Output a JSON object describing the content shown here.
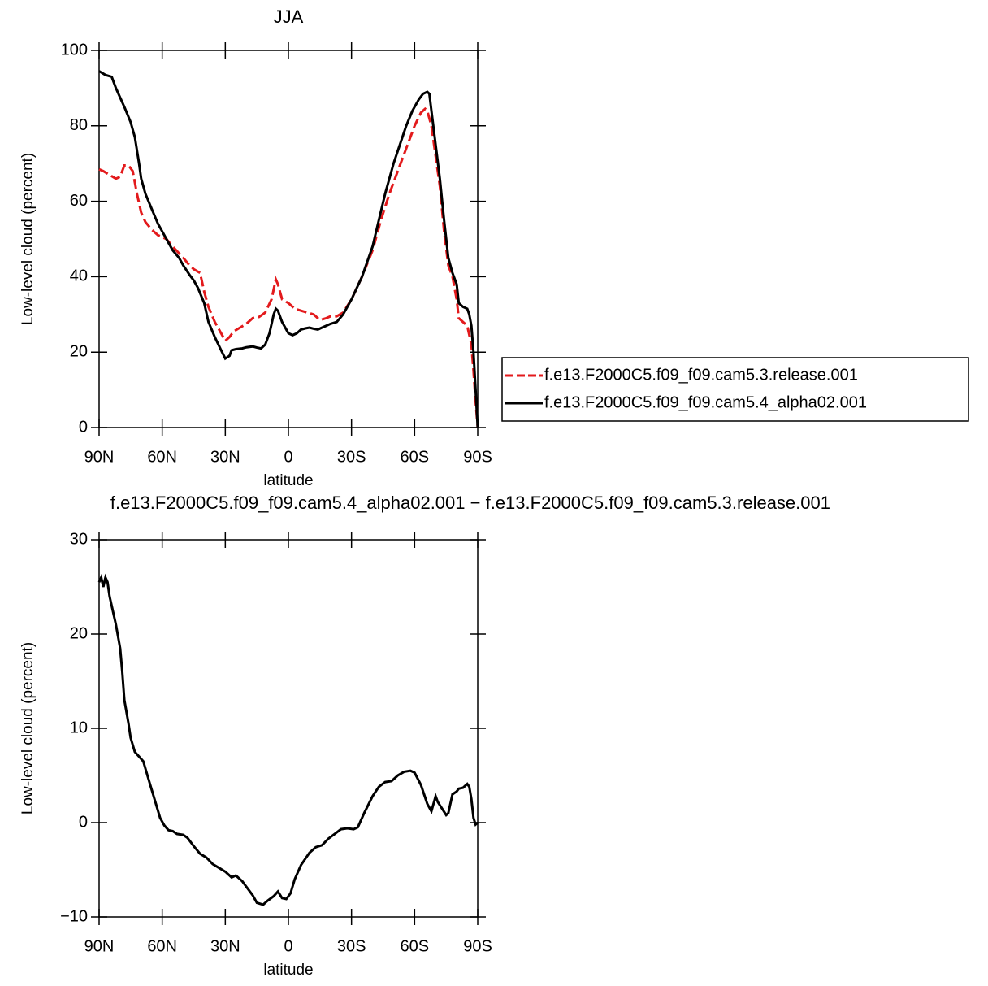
{
  "chart_data": [
    {
      "type": "line",
      "title": "JJA",
      "xlabel": "latitude",
      "ylabel": "Low-level cloud (percent)",
      "xlim": [
        90,
        -90
      ],
      "xticks": [
        {
          "value": 90,
          "label": "90N"
        },
        {
          "value": 60,
          "label": "60N"
        },
        {
          "value": 30,
          "label": "30N"
        },
        0,
        {
          "value": -30,
          "label": "30S"
        },
        {
          "value": -60,
          "label": "60S"
        },
        {
          "value": -90,
          "label": "90S"
        }
      ],
      "ylim": [
        0,
        100
      ],
      "yticks": [
        0,
        20,
        40,
        60,
        80,
        100
      ],
      "legend": "right",
      "series": [
        {
          "name": "f.e13.F2000C5.f09_f09.cam5.3.release.001",
          "color": "#e31a1c",
          "dash": true,
          "x": [
            90,
            88,
            85,
            82,
            80,
            78,
            76,
            74,
            72,
            70,
            68,
            65,
            62,
            58,
            55,
            50,
            47,
            45,
            42,
            40,
            38,
            35,
            32,
            30,
            28,
            26,
            23,
            20,
            17,
            14,
            11,
            8,
            6,
            5,
            3,
            0,
            -3,
            -6,
            -9,
            -12,
            -15,
            -18,
            -20,
            -23,
            -26,
            -30,
            -35,
            -40,
            -44,
            -48,
            -52,
            -56,
            -60,
            -63,
            -65,
            -66,
            -68,
            -70,
            -72,
            -74,
            -76,
            -78,
            -80,
            -81,
            -83,
            -85,
            -87,
            -88,
            -89,
            -90
          ],
          "values": [
            68.5,
            68,
            67,
            66,
            66.5,
            69.5,
            69.5,
            68,
            62,
            57,
            54.5,
            52.5,
            51,
            50,
            48,
            45,
            43,
            42,
            41,
            36,
            32,
            28,
            25,
            23,
            24,
            25.5,
            26.5,
            27.5,
            29,
            29.3,
            30.5,
            34,
            39.3,
            38,
            34,
            33,
            31.5,
            31,
            30.5,
            30,
            28.5,
            29,
            29.5,
            29.5,
            30.5,
            34,
            40,
            47,
            55,
            62,
            68,
            74,
            80,
            83.5,
            84.5,
            84,
            80,
            72,
            64,
            52,
            43,
            40,
            34,
            29,
            28,
            27,
            22,
            15,
            7,
            0
          ]
        },
        {
          "name": "f.e13.F2000C5.f09_f09.cam5.4_alpha02.001",
          "color": "#000000",
          "dash": false,
          "x": [
            90,
            87,
            84,
            82,
            80,
            78,
            75,
            73,
            71,
            70,
            68,
            65,
            62,
            60,
            57,
            55,
            52,
            50,
            47,
            45,
            43,
            40,
            38,
            35,
            32,
            30,
            28,
            27,
            25,
            22,
            20,
            17,
            15,
            13,
            11,
            9,
            7,
            6,
            5,
            3,
            1,
            0,
            -2,
            -4,
            -6,
            -8,
            -10,
            -12,
            -14,
            -16,
            -18,
            -20,
            -23,
            -26,
            -30,
            -35,
            -40,
            -43,
            -46,
            -50,
            -53,
            -56,
            -59,
            -62,
            -64,
            -66,
            -67,
            -68,
            -70,
            -72,
            -74,
            -76,
            -78,
            -80,
            -81,
            -83,
            -85,
            -86,
            -87,
            -88,
            -89,
            -90
          ],
          "values": [
            94.5,
            93.5,
            93,
            90,
            87.5,
            85,
            81,
            77,
            70,
            66,
            62,
            58,
            54,
            52,
            49,
            47,
            45,
            43,
            40.5,
            39,
            37,
            33,
            28,
            24,
            20.5,
            18.3,
            19,
            20.5,
            20.8,
            21,
            21.3,
            21.5,
            21.2,
            21,
            22,
            25,
            30,
            31.5,
            31,
            28,
            26,
            25,
            24.5,
            25,
            26,
            26.3,
            26.5,
            26.2,
            26,
            26.5,
            27,
            27.5,
            28,
            30,
            34,
            40,
            48,
            55,
            62,
            70,
            75,
            80,
            84,
            87,
            88.5,
            89,
            88.5,
            84,
            75,
            66,
            55,
            45,
            41,
            38,
            33,
            32,
            31.5,
            30,
            27,
            20,
            10,
            0
          ]
        }
      ]
    },
    {
      "type": "line",
      "title": "f.e13.F2000C5.f09_f09.cam5.4_alpha02.001 − f.e13.F2000C5.f09_f09.cam5.3.release.001",
      "xlabel": "latitude",
      "ylabel": "Low-level cloud (percent)",
      "xlim": [
        90,
        -90
      ],
      "xticks": [
        {
          "value": 90,
          "label": "90N"
        },
        {
          "value": 60,
          "label": "60N"
        },
        {
          "value": 30,
          "label": "30N"
        },
        0,
        {
          "value": -30,
          "label": "30S"
        },
        {
          "value": -60,
          "label": "60S"
        },
        {
          "value": -90,
          "label": "90S"
        }
      ],
      "ylim": [
        -10,
        30
      ],
      "yticks": [
        {
          "value": -10,
          "label": "−10"
        },
        0,
        10,
        20,
        30
      ],
      "series": [
        {
          "color": "#000000",
          "dash": false,
          "x": [
            90,
            89,
            88,
            87,
            86,
            85,
            84,
            82,
            80,
            79,
            78,
            76,
            75,
            73,
            71,
            69,
            67,
            65,
            63,
            61,
            59,
            57,
            55,
            53,
            50,
            48,
            45,
            42,
            39,
            36,
            33,
            30,
            27,
            25,
            22,
            20,
            17,
            15,
            12,
            10,
            7,
            5,
            3,
            1,
            -1,
            -3,
            -6,
            -10,
            -13,
            -16,
            -19,
            -22,
            -25,
            -28,
            -31,
            -33,
            -36,
            -40,
            -43,
            -46,
            -49,
            -52,
            -55,
            -58,
            -60,
            -63,
            -66,
            -68,
            -70,
            -71,
            -73,
            -75,
            -76,
            -78,
            -80,
            -81,
            -83,
            -85,
            -86,
            -87,
            -88,
            -89,
            -90
          ],
          "values": [
            25.5,
            26,
            25,
            26,
            25.5,
            24,
            23,
            21,
            18.5,
            16,
            13,
            10.5,
            9,
            7.5,
            7,
            6.5,
            5,
            3.5,
            2,
            0.5,
            -0.3,
            -0.8,
            -0.9,
            -1.2,
            -1.3,
            -1.6,
            -2.5,
            -3.3,
            -3.7,
            -4.4,
            -4.8,
            -5.2,
            -5.8,
            -5.6,
            -6.2,
            -6.8,
            -7.7,
            -8.5,
            -8.7,
            -8.3,
            -7.8,
            -7.3,
            -8,
            -8.1,
            -7.5,
            -6,
            -4.5,
            -3.2,
            -2.6,
            -2.4,
            -1.7,
            -1.2,
            -0.7,
            -0.6,
            -0.7,
            -0.5,
            1,
            2.8,
            3.8,
            4.3,
            4.4,
            5,
            5.4,
            5.5,
            5.3,
            4,
            2,
            1.2,
            2.8,
            2.2,
            1.5,
            0.8,
            1,
            3,
            3.3,
            3.6,
            3.7,
            4.1,
            3.8,
            2.5,
            0.5,
            -0.2,
            0
          ]
        }
      ]
    }
  ]
}
